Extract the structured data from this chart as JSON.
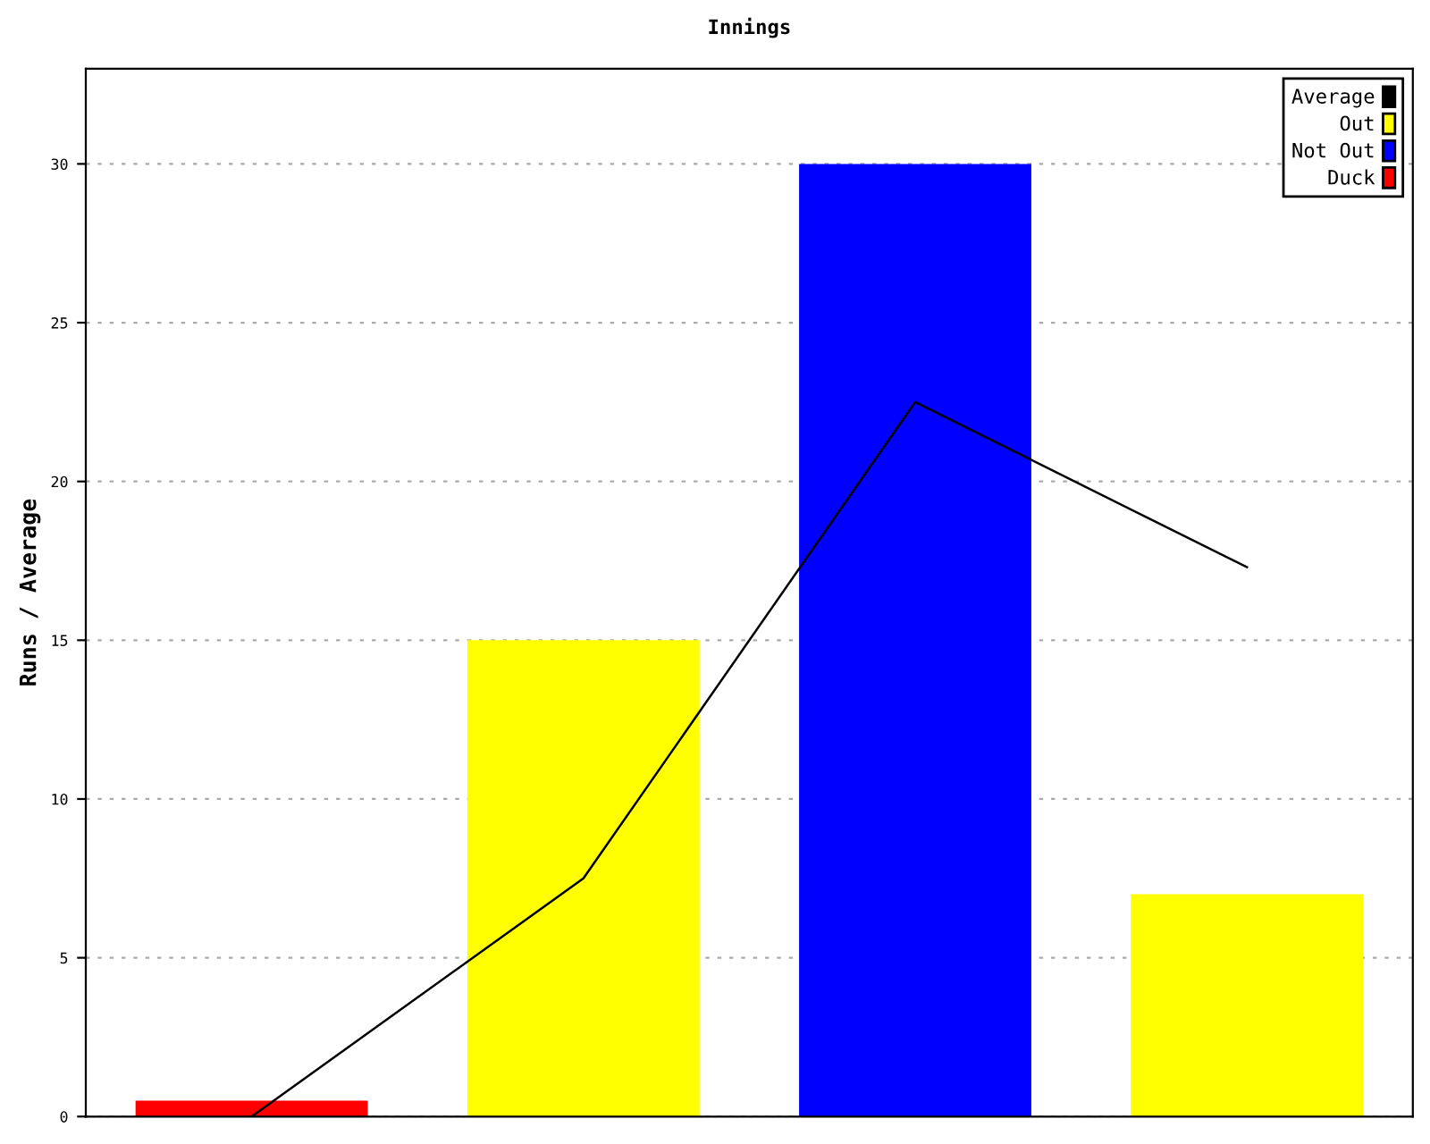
{
  "chart_data": {
    "type": "bar",
    "title": "Innings",
    "ylabel": "Runs / Average",
    "categories": [
      null,
      null,
      null,
      null
    ],
    "series": [
      {
        "name": "Average",
        "type": "line",
        "color": "#000000",
        "values": [
          0,
          7.5,
          22.5,
          17.3
        ]
      },
      {
        "name": "Out",
        "color": "#ffff00",
        "values": [
          null,
          15,
          null,
          7
        ]
      },
      {
        "name": "Not Out",
        "color": "#0000ff",
        "values": [
          null,
          null,
          30,
          null
        ]
      },
      {
        "name": "Duck",
        "color": "#ff0000",
        "values": [
          0.5,
          null,
          null,
          null
        ]
      }
    ],
    "ylim": [
      0,
      33
    ],
    "yticks": [
      0,
      5,
      10,
      15,
      20,
      25,
      30
    ],
    "grid": "y",
    "legend": "top right",
    "marker": "none",
    "line_style": "solid"
  }
}
